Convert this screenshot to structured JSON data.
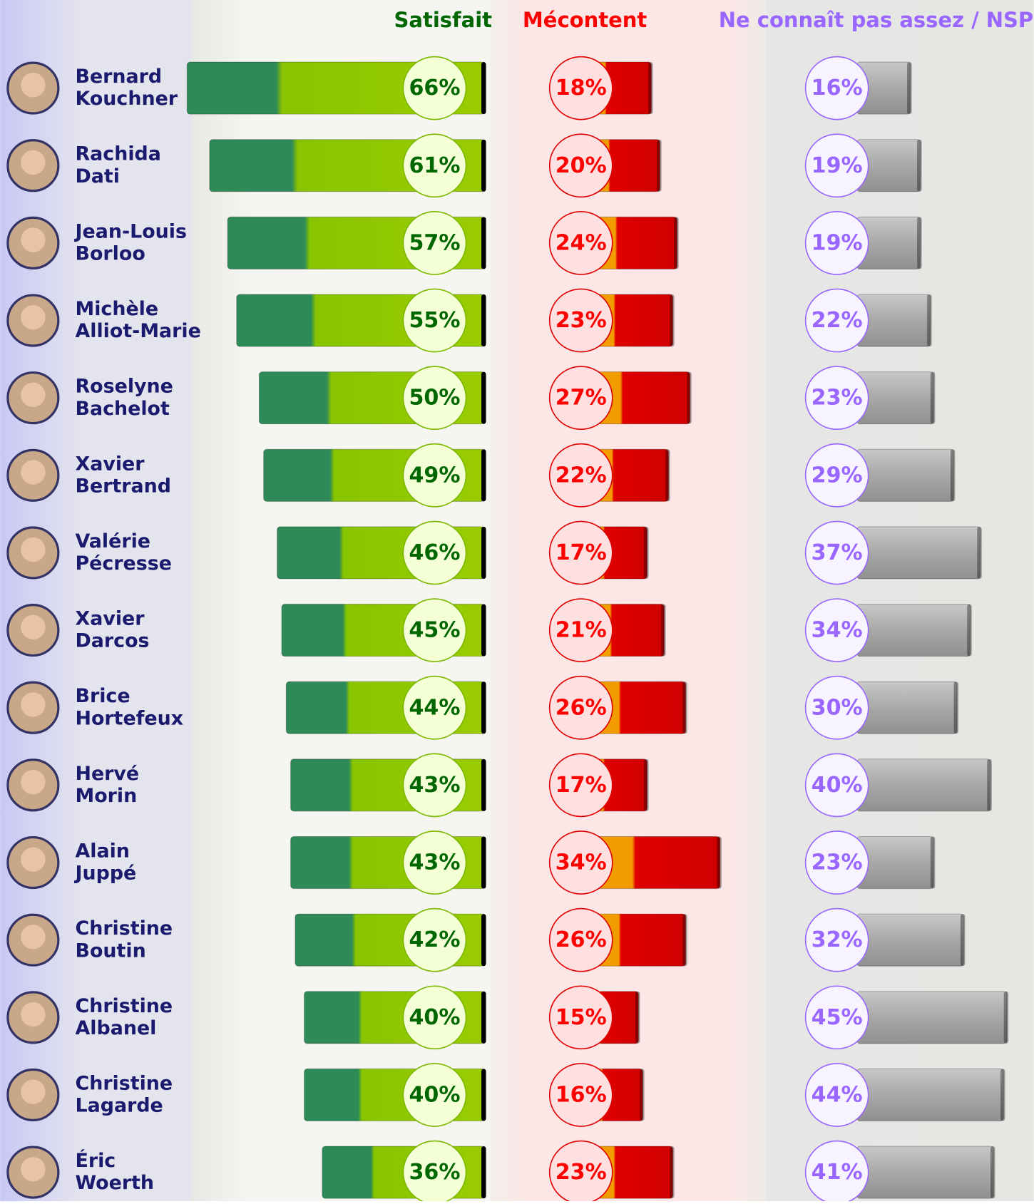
{
  "chart_data": {
    "type": "bar",
    "categories": [
      [
        "Bernard",
        "Kouchner"
      ],
      [
        "Rachida",
        "Dati"
      ],
      [
        "Jean-Louis",
        "Borloo"
      ],
      [
        "Michèle",
        "Alliot-Marie"
      ],
      [
        "Roselyne",
        "Bachelot"
      ],
      [
        "Xavier",
        "Bertrand"
      ],
      [
        "Valérie",
        "Pécresse"
      ],
      [
        "Xavier",
        "Darcos"
      ],
      [
        "Brice",
        "Hortefeux"
      ],
      [
        "Hervé",
        "Morin"
      ],
      [
        "Alain",
        "Juppé"
      ],
      [
        "Christine",
        "Boutin"
      ],
      [
        "Christine",
        "Albanel"
      ],
      [
        "Christine",
        "Lagarde"
      ],
      [
        "Éric",
        "Woerth"
      ]
    ],
    "series": [
      {
        "name": "Satisfait",
        "color": "#7cb800",
        "label_color": "#006600",
        "values": [
          66,
          61,
          57,
          55,
          50,
          49,
          46,
          45,
          44,
          43,
          43,
          42,
          40,
          40,
          36
        ],
        "value_labels": [
          "66%",
          "61%",
          "57%",
          "55%",
          "50%",
          "49%",
          "46%",
          "45%",
          "44%",
          "43%",
          "43%",
          "42%",
          "40%",
          "40%",
          "36%"
        ]
      },
      {
        "name": "Mécontent",
        "color": "#e00000",
        "label_color": "#ff0000",
        "values": [
          18,
          20,
          24,
          23,
          27,
          22,
          17,
          21,
          26,
          17,
          34,
          26,
          15,
          16,
          23
        ],
        "value_labels": [
          "18%",
          "20%",
          "24%",
          "23%",
          "27%",
          "22%",
          "17%",
          "21%",
          "26%",
          "17%",
          "34%",
          "26%",
          "15%",
          "16%",
          "23%"
        ]
      },
      {
        "name": "Ne connaît pas assez / NSP",
        "color": "#a6a6a6",
        "label_color": "#9966ff",
        "values": [
          16,
          19,
          19,
          22,
          23,
          29,
          37,
          34,
          30,
          40,
          23,
          32,
          45,
          44,
          41
        ],
        "value_labels": [
          "16%",
          "19%",
          "19%",
          "22%",
          "23%",
          "29%",
          "37%",
          "34%",
          "30%",
          "40%",
          "23%",
          "32%",
          "45%",
          "44%",
          "41%"
        ]
      }
    ]
  }
}
